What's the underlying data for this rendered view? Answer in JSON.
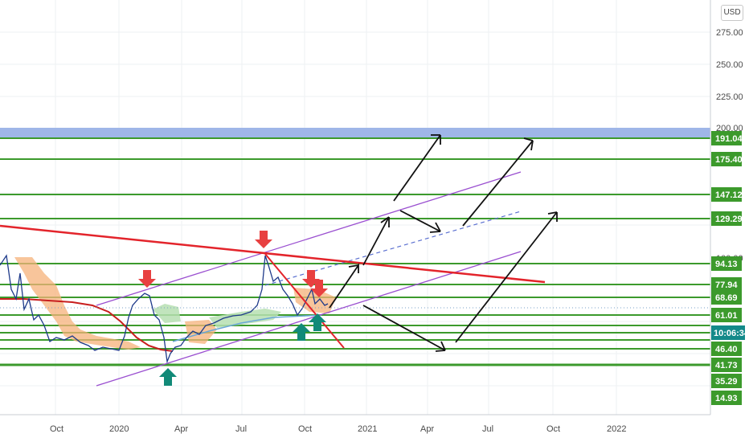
{
  "currency": "USD",
  "colors": {
    "level_line": "#3c9a2c",
    "level_badge": "#3c9a2c",
    "timer_badge": "#138a8a",
    "resistance_zone": "#9fb6e8",
    "trend_red": "#e3242b",
    "channel_purple": "#9a4fd0",
    "arrow_down": "#e84040",
    "arrow_up": "#118a78",
    "projection": "#111111",
    "price_blue": "#1e3a8a",
    "cloud_orange": "#f5b27a",
    "cloud_green": "#b6dfb1",
    "ma_red": "#c81e1e"
  },
  "price_axis": {
    "ticks": [
      "275.00",
      "250.00",
      "225.00",
      "200.00",
      "100.00"
    ]
  },
  "time_axis": {
    "ticks": [
      "Oct",
      "2020",
      "Apr",
      "Jul",
      "Oct",
      "2021",
      "Apr",
      "Jul",
      "Oct",
      "2022"
    ]
  },
  "countdown": "10:06:34",
  "chart_data": {
    "type": "line",
    "y_scale": "log",
    "levels": [
      {
        "label": "191.04",
        "value": 191.04
      },
      {
        "label": "175.40",
        "value": 175.4
      },
      {
        "label": "147.12",
        "value": 147.12
      },
      {
        "label": "129.29",
        "value": 129.29
      },
      {
        "label": "94.13",
        "value": 94.13
      },
      {
        "label": "77.94",
        "value": 77.94
      },
      {
        "label": "68.69",
        "value": 68.69
      },
      {
        "label": "61.01",
        "value": 61.01
      },
      {
        "label": "46.40",
        "value": 46.4
      },
      {
        "label": "41.73",
        "value": 41.73
      },
      {
        "label": "35.29",
        "value": 35.29
      },
      {
        "label": "14.93",
        "value": 14.93
      }
    ],
    "resistance_zone": [
      195,
      206
    ],
    "annotations": {
      "sell_arrows": 4,
      "buy_arrows": 3
    }
  }
}
